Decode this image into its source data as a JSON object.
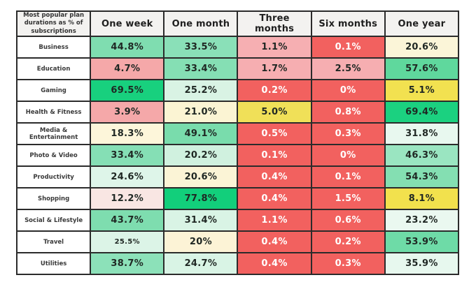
{
  "chart_data": {
    "type": "heatmap",
    "title": "Most popular plan durations as % of subscriptions",
    "columns": [
      "One week",
      "One month",
      "Three months",
      "Six months",
      "One year"
    ],
    "rows": [
      "Business",
      "Education",
      "Gaming",
      "Health & Fitness",
      "Media & Entertainment",
      "Photo & Video",
      "Productivity",
      "Shopping",
      "Social & Lifestyle",
      "Travel",
      "Utilities"
    ],
    "cell_labels": [
      [
        "44.8%",
        "33.5%",
        "1.1%",
        "0.1%",
        "20.6%"
      ],
      [
        "4.7%",
        "33.4%",
        "1.7%",
        "2.5%",
        "57.6%"
      ],
      [
        "69.5%",
        "25.2%",
        "0.2%",
        "0%",
        "5.1%"
      ],
      [
        "3.9%",
        "21.0%",
        "5.0%",
        "0.8%",
        "69.4%"
      ],
      [
        "18.3%",
        "49.1%",
        "0.5%",
        "0.3%",
        "31.8%"
      ],
      [
        "33.4%",
        "20.2%",
        "0.1%",
        "0%",
        "46.3%"
      ],
      [
        "24.6%",
        "20.6%",
        "0.4%",
        "0.1%",
        "54.3%"
      ],
      [
        "12.2%",
        "77.8%",
        "0.4%",
        "1.5%",
        "8.1%"
      ],
      [
        "43.7%",
        "31.4%",
        "1.1%",
        "0.6%",
        "23.2%"
      ],
      [
        "25.5%",
        "20%",
        "0.4%",
        "0.2%",
        "53.9%"
      ],
      [
        "38.7%",
        "24.7%",
        "0.4%",
        "0.3%",
        "35.9%"
      ]
    ],
    "cell_values": [
      [
        44.8,
        33.5,
        1.1,
        0.1,
        20.6
      ],
      [
        4.7,
        33.4,
        1.7,
        2.5,
        57.6
      ],
      [
        69.5,
        25.2,
        0.2,
        0,
        5.1
      ],
      [
        3.9,
        21.0,
        5.0,
        0.8,
        69.4
      ],
      [
        18.3,
        49.1,
        0.5,
        0.3,
        31.8
      ],
      [
        33.4,
        20.2,
        0.1,
        0,
        46.3
      ],
      [
        24.6,
        20.6,
        0.4,
        0.1,
        54.3
      ],
      [
        12.2,
        77.8,
        0.4,
        1.5,
        8.1
      ],
      [
        43.7,
        31.4,
        1.1,
        0.6,
        23.2
      ],
      [
        25.5,
        20,
        0.4,
        0.2,
        53.9
      ],
      [
        38.7,
        24.7,
        0.4,
        0.3,
        35.9
      ]
    ],
    "cell_colors": [
      [
        "#7fddb0",
        "#8ae0b8",
        "#f6afb2",
        "#f2615f",
        "#fbf5d8"
      ],
      [
        "#f5a8a9",
        "#85dfb4",
        "#f6aeb1",
        "#f6aeb1",
        "#5fd89d"
      ],
      [
        "#18d07e",
        "#d9f3e4",
        "#f2615f",
        "#f2615f",
        "#f2e150"
      ],
      [
        "#f5a8a9",
        "#fbf4d3",
        "#f0e058",
        "#f2615f",
        "#1bd180"
      ],
      [
        "#fdf6da",
        "#79dcac",
        "#f2615f",
        "#f2615f",
        "#e8f8ef"
      ],
      [
        "#85dfb5",
        "#d0f1df",
        "#f2615f",
        "#f2615f",
        "#9ae5c1"
      ],
      [
        "#def5e9",
        "#fbf4d6",
        "#f2615f",
        "#f2615f",
        "#84dfb2"
      ],
      [
        "#f9e6e3",
        "#12cf7b",
        "#f2615f",
        "#f2615f",
        "#f2e14d"
      ],
      [
        "#7eddaf",
        "#d9f4e5",
        "#f2615f",
        "#f2615f",
        "#eaf8f0"
      ],
      [
        "#dcf4e7",
        "#fcf3d6",
        "#f2615f",
        "#f2615f",
        "#6edba7"
      ],
      [
        "#8ce1b9",
        "#d9f4e5",
        "#f2615f",
        "#f2615f",
        "#e7f8ee"
      ]
    ],
    "palette": {
      "red": "#f2615f",
      "white_text": "#ffffff",
      "dark_text": "#1f2723",
      "header_bg": "#f3f2f0",
      "border": "#2b2b2b",
      "colormap_note": "red = low %, green = high %"
    },
    "small_value_cells": [
      {
        "row": 9,
        "col": 0
      }
    ],
    "legend_position": "none",
    "grid": true
  }
}
